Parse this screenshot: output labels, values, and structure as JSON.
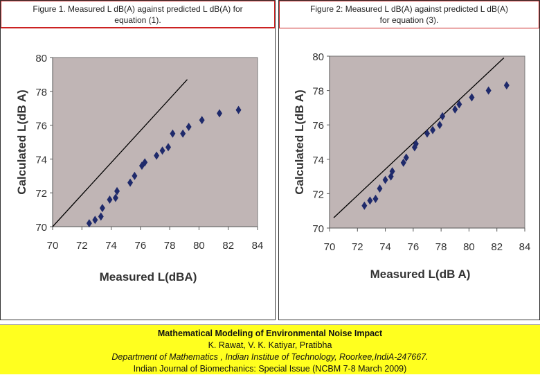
{
  "figures": [
    {
      "caption_line1": "Figure 1. Measured L dB(A) against predicted L dB(A) for",
      "caption_line2": "equation (1)."
    },
    {
      "caption_line1": "Figure 2: Measured L dB(A) against predicted L dB(A)",
      "caption_line2": "for equation (3)."
    }
  ],
  "chart_data": [
    {
      "type": "scatter",
      "xlabel": "Measured L(dBA)",
      "ylabel": "Calculated L(dB A)",
      "xlim": [
        70,
        84
      ],
      "ylim": [
        70,
        80
      ],
      "x_ticks": [
        "70",
        "72",
        "74",
        "76",
        "78",
        "80",
        "82",
        "84"
      ],
      "y_ticks": [
        "70",
        "72",
        "74",
        "76",
        "78",
        "80"
      ],
      "plot_bg": "#c0b5b5",
      "marker_color": "#1f2a6b",
      "line_color": "#000000",
      "line": [
        [
          70,
          70
        ],
        [
          79.2,
          78.7
        ]
      ],
      "points": [
        [
          72.5,
          70.2
        ],
        [
          72.9,
          70.4
        ],
        [
          73.3,
          70.6
        ],
        [
          73.4,
          71.1
        ],
        [
          73.9,
          71.6
        ],
        [
          74.3,
          71.7
        ],
        [
          74.4,
          72.1
        ],
        [
          75.3,
          72.6
        ],
        [
          75.6,
          73.0
        ],
        [
          76.1,
          73.6
        ],
        [
          76.3,
          73.8
        ],
        [
          77.1,
          74.2
        ],
        [
          77.5,
          74.5
        ],
        [
          77.9,
          74.7
        ],
        [
          78.2,
          75.5
        ],
        [
          78.9,
          75.5
        ],
        [
          79.3,
          75.9
        ],
        [
          80.2,
          76.3
        ],
        [
          81.4,
          76.7
        ],
        [
          82.7,
          76.9
        ]
      ]
    },
    {
      "type": "scatter",
      "xlabel": "Measured L(dB A)",
      "ylabel": "Calculated L(dB A)",
      "xlim": [
        70,
        84
      ],
      "ylim": [
        70,
        80
      ],
      "x_ticks": [
        "70",
        "72",
        "74",
        "76",
        "78",
        "80",
        "82",
        "84"
      ],
      "y_ticks": [
        "70",
        "72",
        "74",
        "76",
        "78",
        "80"
      ],
      "plot_bg": "#c0b5b5",
      "marker_color": "#1f2a6b",
      "line_color": "#000000",
      "line": [
        [
          70.3,
          70.6
        ],
        [
          82.5,
          79.9
        ]
      ],
      "points": [
        [
          72.5,
          71.3
        ],
        [
          72.9,
          71.6
        ],
        [
          73.3,
          71.7
        ],
        [
          73.6,
          72.3
        ],
        [
          74.0,
          72.8
        ],
        [
          74.4,
          73.0
        ],
        [
          74.5,
          73.3
        ],
        [
          75.3,
          73.8
        ],
        [
          75.5,
          74.1
        ],
        [
          76.1,
          74.7
        ],
        [
          76.2,
          74.9
        ],
        [
          77.0,
          75.5
        ],
        [
          77.4,
          75.7
        ],
        [
          77.9,
          76.0
        ],
        [
          78.1,
          76.5
        ],
        [
          79.0,
          76.9
        ],
        [
          79.3,
          77.2
        ],
        [
          80.2,
          77.6
        ],
        [
          81.4,
          78.0
        ],
        [
          82.7,
          78.3
        ]
      ]
    }
  ],
  "info": {
    "title": "Mathematical Modeling of Environmental Noise Impact",
    "authors": "K. Rawat, V. K. Katiyar, Pratibha",
    "affiliation": "Department of Mathematics , Indian Institue of Technology, Roorkee,IndiA-247667.",
    "journal": "Indian Journal of Biomechanics: Special Issue (NCBM 7-8 March 2009)"
  }
}
